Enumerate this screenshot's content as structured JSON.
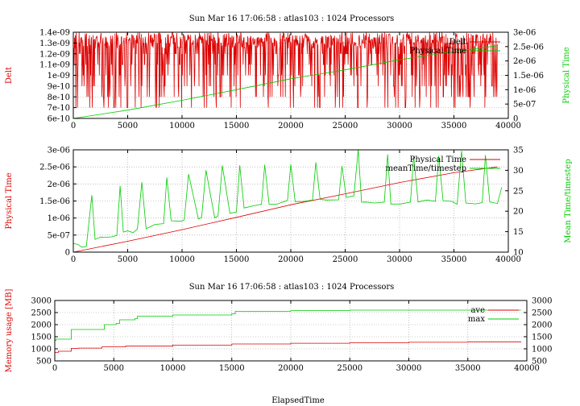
{
  "window": {
    "title_top": "Sun Mar 16 17:06:58 : atlas103 : 1024 Processors",
    "title_bottom": "Sun Mar 16 17:06:58 : atlas103 : 1024 Processors",
    "xlabel_bottom": "ElapsedTime"
  },
  "colors": {
    "red": "#dd0000",
    "green": "#00cc00",
    "grid": "#999999"
  },
  "chart_data": [
    {
      "type": "line",
      "title": "Sun Mar 16 17:06:58 : atlas103 : 1024 Processors",
      "xlabel": "",
      "ylabel": "Delt",
      "y2label": "Physical Time",
      "xlim": [
        0,
        40000
      ],
      "ylim": [
        6e-10,
        1.4e-09
      ],
      "y2lim": [
        0,
        3e-06
      ],
      "xticks": [
        "0",
        "5000",
        "10000",
        "15000",
        "20000",
        "25000",
        "30000",
        "35000",
        "40000"
      ],
      "yticks": [
        "6e-10",
        "7e-10",
        "8e-10",
        "9e-10",
        "1e-09",
        "1.1e-09",
        "1.2e-09",
        "1.3e-09",
        "1.4e-09"
      ],
      "y2ticks": [
        "0",
        "5e-07",
        "1e-06",
        "1.5e-06",
        "2e-06",
        "2.5e-06",
        "3e-06"
      ],
      "grid": true,
      "legend_position": "top-right",
      "series": [
        {
          "name": "Delt",
          "axis": "left",
          "color": "#dd0000",
          "x": [
            0,
            2000,
            4000,
            6000,
            8000,
            10000,
            12000,
            14000,
            16000,
            18000,
            20000,
            22000,
            24000,
            26000,
            28000,
            30000,
            32000,
            34000,
            36000,
            38000,
            39000
          ],
          "values": [
            1.2e-09,
            1.3e-09,
            1.1e-09,
            1.35e-09,
            1.2e-09,
            1.3e-09,
            1.15e-09,
            1.3e-09,
            1.2e-09,
            1.35e-09,
            1.1e-09,
            1.3e-09,
            1.2e-09,
            1.35e-09,
            1.15e-09,
            1.3e-09,
            1.2e-09,
            1.35e-09,
            1.1e-09,
            1.3e-09,
            1.2e-09
          ]
        },
        {
          "name": "Physical Time",
          "axis": "right",
          "color": "#00cc00",
          "x": [
            0,
            5000,
            10000,
            15000,
            20000,
            25000,
            30000,
            35000,
            39000
          ],
          "values": [
            0,
            2.9e-07,
            6.3e-07,
            1e-06,
            1.38e-06,
            1.69e-06,
            2.04e-06,
            2.33e-06,
            2.53e-06
          ]
        }
      ]
    },
    {
      "type": "line",
      "title": "",
      "xlabel": "",
      "ylabel": "Physical Time",
      "y2label": "Mean Time/timestep",
      "xlim": [
        0,
        40000
      ],
      "ylim": [
        0,
        3e-06
      ],
      "y2lim": [
        10,
        35
      ],
      "xticks": [
        "0",
        "5000",
        "10000",
        "15000",
        "20000",
        "25000",
        "30000",
        "35000",
        "40000"
      ],
      "yticks": [
        "0",
        "5e-07",
        "1e-06",
        "1.5e-06",
        "2e-06",
        "2.5e-06",
        "3e-06"
      ],
      "y2ticks": [
        "10",
        "15",
        "20",
        "25",
        "30",
        "35"
      ],
      "grid": true,
      "legend_position": "top-right",
      "series": [
        {
          "name": "Physical Time",
          "axis": "left",
          "color": "#dd0000",
          "x": [
            0,
            5000,
            10000,
            15000,
            20000,
            25000,
            30000,
            35000,
            39000
          ],
          "values": [
            0,
            3.2e-07,
            6.6e-07,
            1.02e-06,
            1.39e-06,
            1.71e-06,
            2.04e-06,
            2.33e-06,
            2.5e-06
          ]
        },
        {
          "name": "meanTime/timestep",
          "axis": "right",
          "color": "#00cc00",
          "x": [
            0,
            400,
            800,
            1200,
            1700,
            2000,
            2500,
            3000,
            3500,
            4000,
            4300,
            4600,
            5000,
            5500,
            5900,
            6300,
            6700,
            7500,
            8300,
            8600,
            9000,
            9900,
            10200,
            10600,
            11500,
            11800,
            12200,
            13000,
            13300,
            13700,
            14400,
            15000,
            15300,
            15700,
            16400,
            17300,
            17600,
            18000,
            18700,
            19700,
            20000,
            20400,
            21100,
            22000,
            22300,
            22700,
            23300,
            24400,
            24700,
            25100,
            25800,
            26200,
            26500,
            26900,
            27700,
            28600,
            28900,
            29200,
            30100,
            31000,
            31300,
            31700,
            32500,
            33300,
            33600,
            34000,
            34800,
            35300,
            35700,
            36100,
            37000,
            37600,
            37900,
            38300,
            39000,
            39400
          ],
          "values": [
            12,
            12,
            11,
            11.5,
            24,
            13,
            13.5,
            13.5,
            14,
            14,
            26,
            15,
            15,
            15,
            15.5,
            27,
            16,
            16.5,
            17,
            28,
            17.5,
            17.5,
            18,
            29,
            18,
            18.5,
            30,
            18.5,
            19,
            31,
            19.5,
            20,
            31.5,
            21,
            21,
            21.5,
            31.5,
            22,
            22,
            22.5,
            31.5,
            22.5,
            22.5,
            23,
            32,
            23,
            23,
            23,
            31,
            23.5,
            23.5,
            35,
            22,
            22,
            22,
            22.5,
            34,
            22,
            22,
            22.5,
            33.5,
            22.5,
            22.5,
            22.5,
            33.5,
            22.5,
            22.5,
            22,
            35,
            22,
            22,
            22,
            34,
            22,
            22,
            26
          ]
        }
      ]
    },
    {
      "type": "line",
      "title": "Sun Mar 16 17:06:58 : atlas103 : 1024 Processors",
      "xlabel": "ElapsedTime",
      "ylabel": "Memory usage [MB]",
      "y2label": "",
      "xlim": [
        0,
        40000
      ],
      "ylim": [
        500,
        3000
      ],
      "y2lim": [
        500,
        3000
      ],
      "xticks": [
        "0",
        "5000",
        "10000",
        "15000",
        "20000",
        "25000",
        "30000",
        "35000",
        "40000"
      ],
      "yticks": [
        "500",
        "1000",
        "1500",
        "2000",
        "2500",
        "3000"
      ],
      "y2ticks": [
        "500",
        "1000",
        "1500",
        "2000",
        "2500",
        "3000"
      ],
      "grid": true,
      "legend_position": "top-right",
      "series": [
        {
          "name": "ave",
          "axis": "left",
          "color": "#dd0000",
          "x": [
            0,
            300,
            1000,
            1400,
            2000,
            4000,
            6000,
            10000,
            15000,
            20000,
            25000,
            30000,
            35000,
            39500
          ],
          "values": [
            850,
            900,
            900,
            1020,
            1030,
            1080,
            1110,
            1150,
            1200,
            1230,
            1250,
            1270,
            1290,
            1300
          ]
        },
        {
          "name": "max",
          "axis": "left",
          "color": "#00cc00",
          "x": [
            0,
            100,
            1000,
            1400,
            3800,
            4200,
            5200,
            5500,
            6800,
            7000,
            10000,
            15000,
            15300,
            20000,
            25000,
            30000,
            35000,
            39500
          ],
          "values": [
            1350,
            1400,
            1400,
            1800,
            1800,
            2000,
            2050,
            2200,
            2250,
            2350,
            2400,
            2450,
            2550,
            2580,
            2600,
            2600,
            2600,
            2600
          ]
        }
      ]
    }
  ]
}
